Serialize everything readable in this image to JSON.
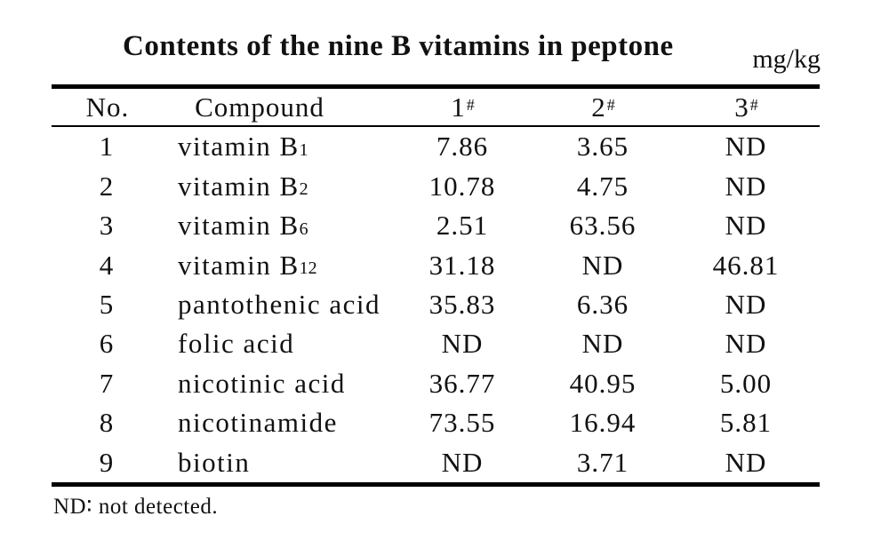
{
  "title": "Contents of the nine B vitamins in peptone",
  "unit": "mg/kg",
  "table": {
    "headers": {
      "no": "No.",
      "compound": "Compound",
      "col1": {
        "label": "1",
        "sup": "#"
      },
      "col2": {
        "label": "2",
        "sup": "#"
      },
      "col3": {
        "label": "3",
        "sup": "#"
      }
    },
    "rows": [
      {
        "no": "1",
        "compound": "vitamin B",
        "sub": "1",
        "v1": "7.86",
        "v2": "3.65",
        "v3": "ND"
      },
      {
        "no": "2",
        "compound": "vitamin B",
        "sub": "2",
        "v1": "10.78",
        "v2": "4.75",
        "v3": "ND"
      },
      {
        "no": "3",
        "compound": "vitamin B",
        "sub": "6",
        "v1": "2.51",
        "v2": "63.56",
        "v3": "ND"
      },
      {
        "no": "4",
        "compound": "vitamin B",
        "sub": "12",
        "v1": "31.18",
        "v2": "ND",
        "v3": "46.81"
      },
      {
        "no": "5",
        "compound": "pantothenic acid",
        "sub": "",
        "v1": "35.83",
        "v2": "6.36",
        "v3": "ND"
      },
      {
        "no": "6",
        "compound": "folic acid",
        "sub": "",
        "v1": "ND",
        "v2": "ND",
        "v3": "ND"
      },
      {
        "no": "7",
        "compound": "nicotinic acid",
        "sub": "",
        "v1": "36.77",
        "v2": "40.95",
        "v3": "5.00"
      },
      {
        "no": "8",
        "compound": "nicotinamide",
        "sub": "",
        "v1": "73.55",
        "v2": "16.94",
        "v3": "5.81"
      },
      {
        "no": "9",
        "compound": "biotin",
        "sub": "",
        "v1": "ND",
        "v2": "3.71",
        "v3": "ND"
      }
    ]
  },
  "footnote": "ND∶ not detected."
}
